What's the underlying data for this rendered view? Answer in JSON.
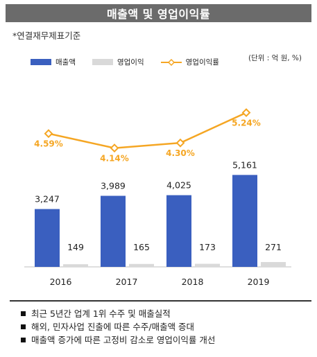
{
  "header": {
    "title": "매출액  및 영업이익률"
  },
  "basis_note": "*연결재무제표기준",
  "unit_note": "(단위 : 억 원, %)",
  "colors": {
    "revenue": "#3a5fbf",
    "op_income": "#d9d9d9",
    "margin": "#f5a623"
  },
  "chart_data": {
    "type": "bar",
    "categories": [
      "2016",
      "2017",
      "2018",
      "2019"
    ],
    "series": [
      {
        "name": "매출액",
        "type": "bar",
        "values": [
          3247,
          3989,
          4025,
          5161
        ],
        "labels": [
          "3,247",
          "3,989",
          "4,025",
          "5,161"
        ]
      },
      {
        "name": "영업이익",
        "type": "bar",
        "values": [
          149,
          165,
          173,
          271
        ],
        "labels": [
          "149",
          "165",
          "173",
          "271"
        ]
      },
      {
        "name": "영업이익률",
        "type": "line",
        "values": [
          4.59,
          4.14,
          4.3,
          5.24
        ],
        "labels": [
          "4.59%",
          "4.14%",
          "4.30%",
          "5.24%"
        ]
      }
    ],
    "ylim": [
      0,
      6000
    ],
    "grid": false,
    "legend_position": "top-left"
  },
  "bullets": [
    "최근 5년간 업계 1위 수주 및 매출실적",
    "해외, 민자사업 진출에 따른 수주/매출액 증대",
    "매출액 증가에 따른 고정비 감소로 영업이익률 개선"
  ]
}
